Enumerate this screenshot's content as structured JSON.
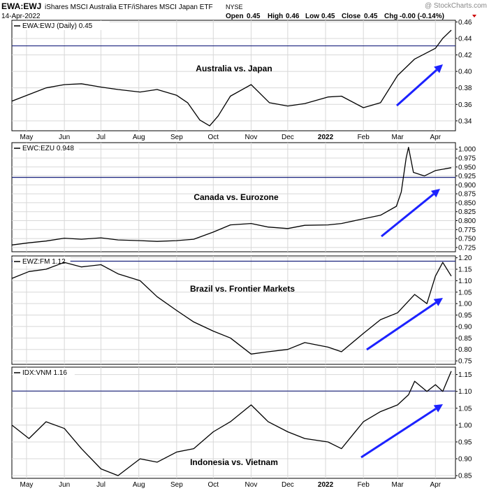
{
  "header": {
    "symbol": "EWA:EWJ",
    "description": "iShares MSCI Australia ETF/iShares MSCI Japan ETF",
    "exchange": "NYSE",
    "date": "14-Apr-2022",
    "open_label": "Open",
    "open": "0.45",
    "high_label": "High",
    "high": "0.46",
    "low_label": "Low",
    "low": "0.45",
    "close_label": "Close",
    "close": "0.45",
    "chg_label": "Chg",
    "chg": "-0.00 (-0.14%)",
    "watermark": "@ StockCharts.com"
  },
  "x_axis_labels": [
    "May",
    "Jun",
    "Jul",
    "Aug",
    "Sep",
    "Oct",
    "Nov",
    "Dec",
    "2022",
    "Feb",
    "Mar",
    "Apr"
  ],
  "colors": {
    "price": "#000000",
    "arrow": "#1c22ff",
    "hline": "#1a237e",
    "grid": "#d8d8d8",
    "watermark": "#888888",
    "down": "#cc0000"
  },
  "chart_data": [
    {
      "type": "line",
      "legend": "EWA:EWJ (Daily) 0.45",
      "annotation": "Australia vs. Japan",
      "yticks": [
        0.34,
        0.36,
        0.38,
        0.4,
        0.42,
        0.44,
        0.46
      ],
      "ylim": [
        0.328,
        0.462
      ],
      "hline": 0.431,
      "x": [
        "2021-04-19",
        "2021-05-03",
        "2021-05-17",
        "2021-06-01",
        "2021-06-15",
        "2021-07-01",
        "2021-07-15",
        "2021-08-02",
        "2021-08-16",
        "2021-09-01",
        "2021-09-10",
        "2021-09-20",
        "2021-09-28",
        "2021-10-05",
        "2021-10-15",
        "2021-11-01",
        "2021-11-16",
        "2021-12-01",
        "2021-12-15",
        "2022-01-03",
        "2022-01-14",
        "2022-02-01",
        "2022-02-15",
        "2022-03-01",
        "2022-03-15",
        "2022-04-01",
        "2022-04-07",
        "2022-04-14"
      ],
      "values": [
        0.364,
        0.372,
        0.38,
        0.384,
        0.385,
        0.381,
        0.378,
        0.375,
        0.378,
        0.371,
        0.362,
        0.341,
        0.334,
        0.346,
        0.37,
        0.384,
        0.362,
        0.358,
        0.361,
        0.369,
        0.37,
        0.356,
        0.362,
        0.395,
        0.415,
        0.428,
        0.44,
        0.45
      ]
    },
    {
      "type": "line",
      "legend": "EWC:EZU 0.948",
      "annotation": "Canada vs. Eurozone",
      "yticks": [
        0.725,
        0.75,
        0.775,
        0.8,
        0.825,
        0.85,
        0.875,
        0.9,
        0.925,
        0.95,
        0.975,
        1.0
      ],
      "ylim": [
        0.713,
        1.018
      ],
      "hline": 0.921,
      "x": [
        "2021-04-19",
        "2021-05-03",
        "2021-05-17",
        "2021-06-01",
        "2021-06-15",
        "2021-07-01",
        "2021-07-15",
        "2021-08-02",
        "2021-08-16",
        "2021-09-01",
        "2021-09-15",
        "2021-10-01",
        "2021-10-15",
        "2021-11-01",
        "2021-11-15",
        "2021-12-01",
        "2021-12-15",
        "2022-01-03",
        "2022-01-14",
        "2022-02-01",
        "2022-02-15",
        "2022-02-28",
        "2022-03-04",
        "2022-03-08",
        "2022-03-10",
        "2022-03-14",
        "2022-03-23",
        "2022-04-01",
        "2022-04-14"
      ],
      "values": [
        0.732,
        0.738,
        0.743,
        0.751,
        0.748,
        0.752,
        0.746,
        0.744,
        0.742,
        0.744,
        0.748,
        0.768,
        0.788,
        0.792,
        0.782,
        0.778,
        0.787,
        0.788,
        0.792,
        0.805,
        0.815,
        0.84,
        0.88,
        0.975,
        1.005,
        0.935,
        0.925,
        0.94,
        0.948
      ]
    },
    {
      "type": "line",
      "legend": "EWZ:FM 1.12",
      "annotation": "Brazil vs. Frontier Markets",
      "yticks": [
        0.75,
        0.8,
        0.85,
        0.9,
        0.95,
        1.0,
        1.05,
        1.1,
        1.15,
        1.2
      ],
      "ylim": [
        0.735,
        1.208
      ],
      "hline": 1.185,
      "x": [
        "2021-04-19",
        "2021-05-03",
        "2021-05-17",
        "2021-06-01",
        "2021-06-15",
        "2021-07-01",
        "2021-07-15",
        "2021-08-02",
        "2021-08-16",
        "2021-09-01",
        "2021-09-15",
        "2021-10-01",
        "2021-10-15",
        "2021-11-01",
        "2021-11-15",
        "2021-12-01",
        "2021-12-15",
        "2022-01-03",
        "2022-01-14",
        "2022-02-01",
        "2022-02-15",
        "2022-03-01",
        "2022-03-15",
        "2022-03-25",
        "2022-04-01",
        "2022-04-07",
        "2022-04-14"
      ],
      "values": [
        1.11,
        1.14,
        1.15,
        1.18,
        1.16,
        1.17,
        1.13,
        1.1,
        1.03,
        0.97,
        0.92,
        0.88,
        0.85,
        0.78,
        0.79,
        0.8,
        0.83,
        0.81,
        0.79,
        0.87,
        0.93,
        0.96,
        1.04,
        1.0,
        1.12,
        1.18,
        1.12
      ]
    },
    {
      "type": "line",
      "legend": "IDX:VNM 1.16",
      "annotation": "Indonesia vs. Vietnam",
      "yticks": [
        0.85,
        0.9,
        0.95,
        1.0,
        1.05,
        1.1,
        1.15
      ],
      "ylim": [
        0.842,
        1.172
      ],
      "hline": 1.101,
      "x": [
        "2021-04-19",
        "2021-05-03",
        "2021-05-17",
        "2021-06-01",
        "2021-06-15",
        "2021-07-01",
        "2021-07-15",
        "2021-08-02",
        "2021-08-16",
        "2021-09-01",
        "2021-09-15",
        "2021-10-01",
        "2021-10-15",
        "2021-11-01",
        "2021-11-15",
        "2021-12-01",
        "2021-12-15",
        "2022-01-03",
        "2022-01-14",
        "2022-02-01",
        "2022-02-15",
        "2022-03-01",
        "2022-03-10",
        "2022-03-15",
        "2022-03-25",
        "2022-04-01",
        "2022-04-07",
        "2022-04-14"
      ],
      "values": [
        1.0,
        0.96,
        1.01,
        0.99,
        0.93,
        0.87,
        0.85,
        0.9,
        0.89,
        0.92,
        0.93,
        0.98,
        1.01,
        1.06,
        1.01,
        0.98,
        0.96,
        0.95,
        0.93,
        1.01,
        1.04,
        1.06,
        1.09,
        1.13,
        1.1,
        1.12,
        1.1,
        1.16
      ]
    }
  ]
}
